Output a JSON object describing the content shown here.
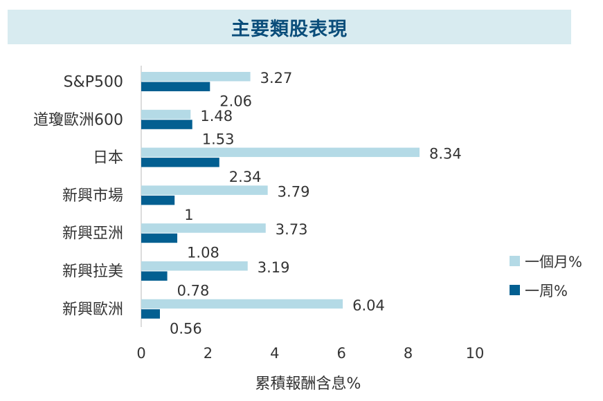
{
  "chart_data": {
    "type": "bar",
    "orientation": "horizontal",
    "title": "主要類股表現",
    "categories": [
      "S&P500",
      "道瓊歐洲600",
      "日本",
      "新興市場",
      "新興亞洲",
      "新興拉美",
      "新興歐洲"
    ],
    "series": [
      {
        "name": "一個月%",
        "color": "#b4dae6",
        "values": [
          3.27,
          1.48,
          8.34,
          3.79,
          3.73,
          3.19,
          6.04
        ],
        "labels": [
          "3.27",
          "1.48",
          "8.34",
          "3.79",
          "3.73",
          "3.19",
          "6.04"
        ]
      },
      {
        "name": "一周%",
        "color": "#035f91",
        "values": [
          2.06,
          1.53,
          2.34,
          1,
          1.08,
          0.78,
          0.56
        ],
        "labels": [
          "2.06",
          "1.53",
          "2.34",
          "1",
          "1.08",
          "0.78",
          "0.56"
        ]
      }
    ],
    "xlabel": "累積報酬含息%",
    "ylabel": "",
    "xlim": [
      0,
      10
    ],
    "xticks": [
      "0",
      "2",
      "4",
      "6",
      "8",
      "10"
    ],
    "grid": false,
    "legend_position": "right"
  }
}
